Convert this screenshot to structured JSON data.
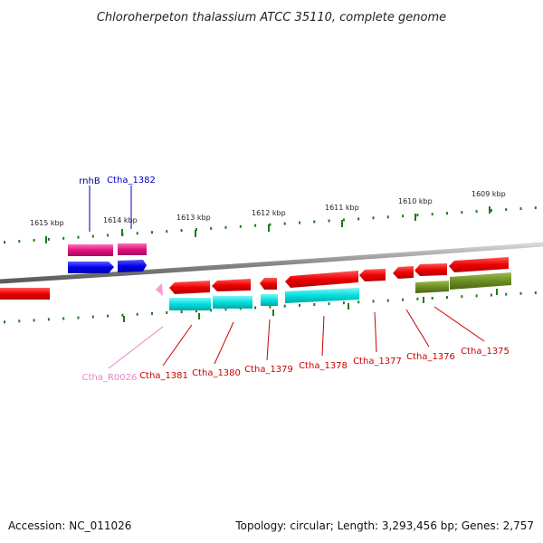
{
  "title": "Chloroherpeton thalassium ATCC 35110, complete genome",
  "footer": {
    "accession": "Accession: NC_011026",
    "summary": "Topology: circular; Length: 3,293,456 bp; Genes: 2,757"
  },
  "tick_labels": [
    "1615 kbp",
    "1614 kbp",
    "1613 kbp",
    "1612 kbp",
    "1611 kbp",
    "1610 kbp",
    "1609 kbp"
  ],
  "gene_labels": [
    {
      "id": "rnhB",
      "text": "rnhB",
      "color": "#00008b"
    },
    {
      "id": "ctha-1382",
      "text": "Ctha_1382",
      "color": "#0000cd"
    },
    {
      "id": "ctha-r0026",
      "text": "Ctha_R0026",
      "color": "#ee82c4"
    },
    {
      "id": "ctha-1381",
      "text": "Ctha_1381",
      "color": "#cc0000"
    },
    {
      "id": "ctha-1380",
      "text": "Ctha_1380",
      "color": "#cc0000"
    },
    {
      "id": "ctha-1379",
      "text": "Ctha_1379",
      "color": "#cc0000"
    },
    {
      "id": "ctha-1378",
      "text": "Ctha_1378",
      "color": "#cc0000"
    },
    {
      "id": "ctha-1377",
      "text": "Ctha_1377",
      "color": "#cc0000"
    },
    {
      "id": "ctha-1376",
      "text": "Ctha_1376",
      "color": "#cc0000"
    },
    {
      "id": "ctha-1375",
      "text": "Ctha_1375",
      "color": "#cc0000"
    }
  ],
  "colors": {
    "backbone": "#8a8a8a",
    "tick": "#1e7a1e",
    "forward_gene": "#ee0000",
    "cds_cyan": "#00dddd",
    "cds_olive": "#6b8e23",
    "gene_magenta": "#e0127f",
    "cds_blue": "#0000ee",
    "rna_pink": "#ff9ad5"
  }
}
